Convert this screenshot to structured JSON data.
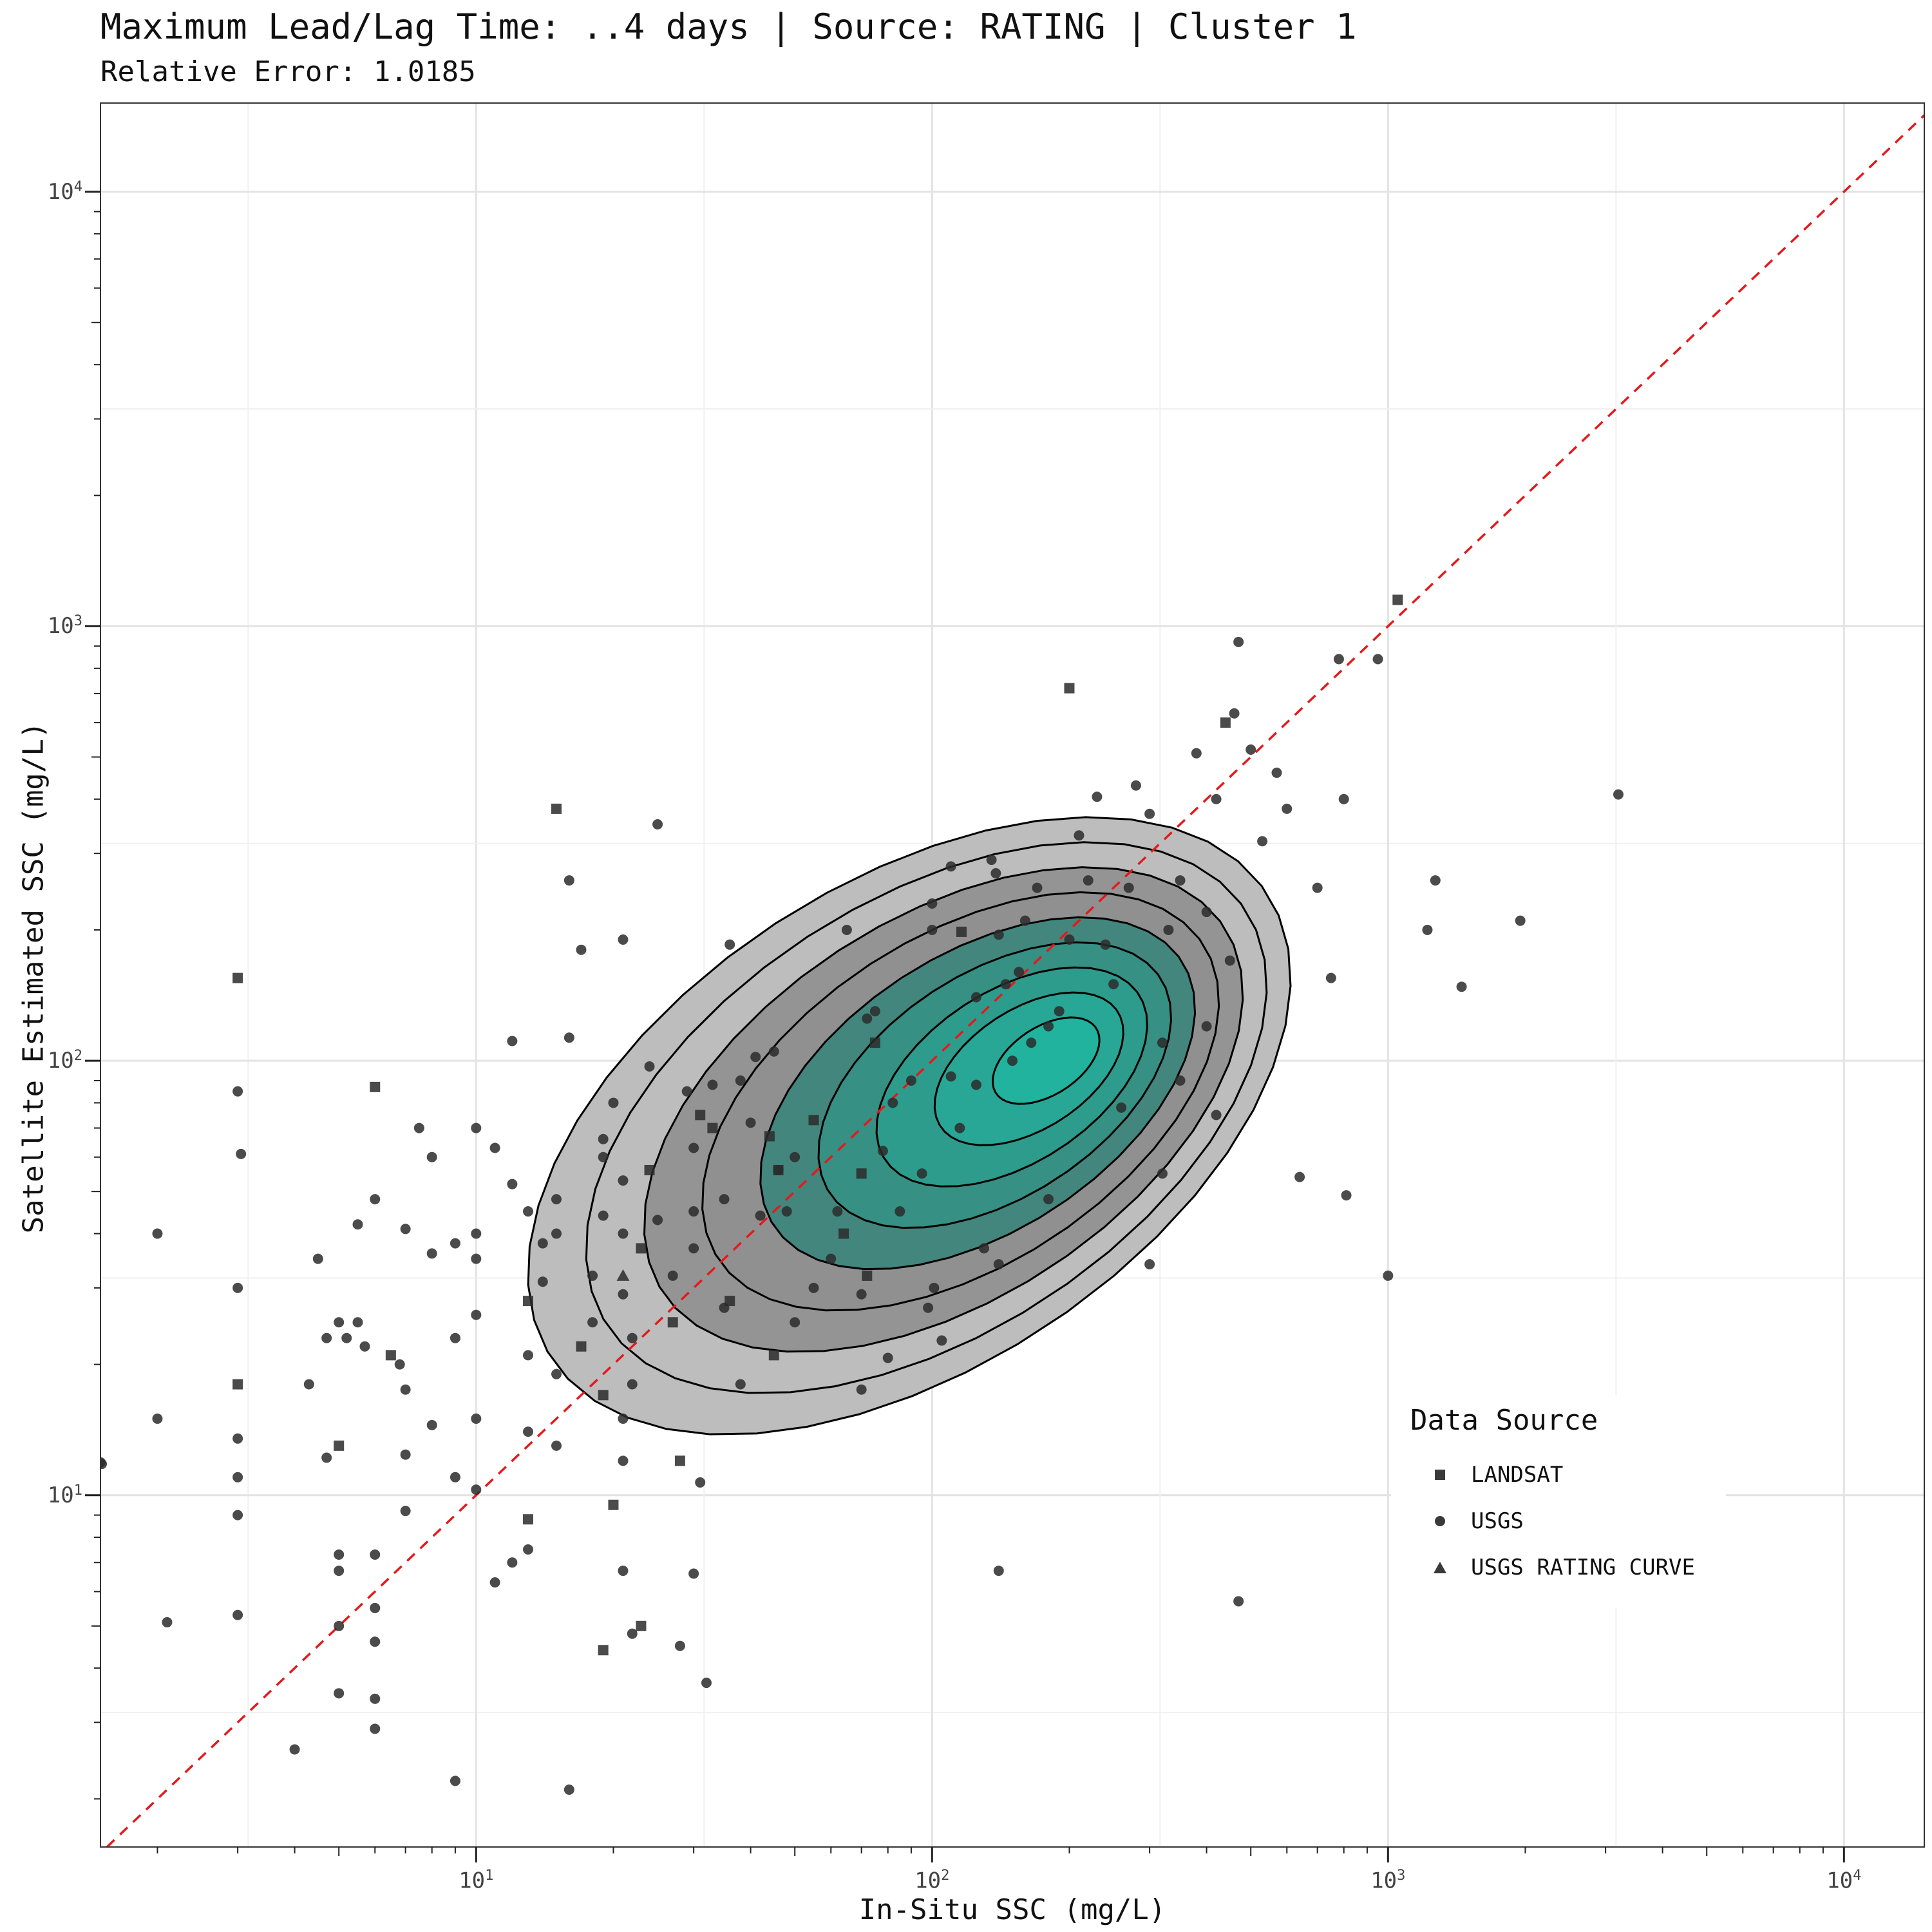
{
  "title": "Maximum Lead/Lag Time: ..4 days | Source: RATING | Cluster 1",
  "subtitle": "Relative Error: 1.0185",
  "chart_data": {
    "type": "scatter",
    "x_label": "In-Situ SSC (mg/L)",
    "y_label": "Satellite Estimated SSC (mg/L)",
    "x_scale": "log10",
    "y_scale": "log10",
    "x_range": [
      1.5,
      15000
    ],
    "y_range": [
      1.55,
      16000
    ],
    "x_ticks": [
      {
        "base": "10",
        "exp": "1",
        "value": 10
      },
      {
        "base": "10",
        "exp": "2",
        "value": 100
      },
      {
        "base": "10",
        "exp": "3",
        "value": 1000
      },
      {
        "base": "10",
        "exp": "4",
        "value": 10000
      }
    ],
    "y_ticks": [
      {
        "base": "10",
        "exp": "1",
        "value": 10
      },
      {
        "base": "10",
        "exp": "2",
        "value": 100
      },
      {
        "base": "10",
        "exp": "3",
        "value": 1000
      },
      {
        "base": "10",
        "exp": "4",
        "value": 10000
      }
    ],
    "grid": true,
    "reference_line": {
      "type": "1:1",
      "color": "#e31a1c",
      "style": "dashed"
    },
    "density_contours": {
      "levels": 9,
      "low_color": "#bdbdbd",
      "high_color": "#21b5a0"
    },
    "legend": {
      "title": "Data Source",
      "position": "bottom-right",
      "items": [
        {
          "label": "LANDSAT",
          "shape": "square"
        },
        {
          "label": "USGS",
          "shape": "circle"
        },
        {
          "label": "USGS RATING CURVE",
          "shape": "triangle"
        }
      ]
    },
    "series": [
      {
        "name": "LANDSAT",
        "shape": "square",
        "points": [
          [
            1050,
            1150
          ],
          [
            200,
            720
          ],
          [
            15,
            380
          ],
          [
            3,
            155
          ],
          [
            6,
            87
          ],
          [
            3,
            18
          ],
          [
            5,
            13
          ],
          [
            6.5,
            21
          ],
          [
            13,
            28
          ],
          [
            17,
            22
          ],
          [
            19,
            17
          ],
          [
            20,
            9.5
          ],
          [
            13,
            8.8
          ],
          [
            19,
            4.4
          ],
          [
            23,
            5
          ],
          [
            28,
            12
          ],
          [
            27,
            25
          ],
          [
            23,
            37
          ],
          [
            24,
            56
          ],
          [
            36,
            28
          ],
          [
            45,
            21
          ],
          [
            55,
            73
          ],
          [
            70,
            55
          ],
          [
            64,
            40
          ],
          [
            31,
            75
          ],
          [
            33,
            70
          ],
          [
            46,
            56
          ],
          [
            44,
            67
          ],
          [
            75,
            110
          ],
          [
            440,
            600
          ],
          [
            116,
            198
          ],
          [
            72,
            32
          ]
        ]
      },
      {
        "name": "USGS",
        "shape": "circle",
        "points": [
          [
            1.5,
            11.9
          ],
          [
            1.51,
            11.8
          ],
          [
            2,
            40
          ],
          [
            2,
            15
          ],
          [
            2.1,
            5.1
          ],
          [
            3,
            85
          ],
          [
            3.05,
            61
          ],
          [
            3,
            30
          ],
          [
            3,
            13.5
          ],
          [
            3,
            11
          ],
          [
            3,
            9
          ],
          [
            3,
            5.3
          ],
          [
            4,
            2.6
          ],
          [
            4.5,
            35
          ],
          [
            4.3,
            18
          ],
          [
            4.7,
            23
          ],
          [
            5,
            25
          ],
          [
            4.7,
            12.2
          ],
          [
            5,
            7.3
          ],
          [
            5,
            6.7
          ],
          [
            5,
            5
          ],
          [
            5,
            3.5
          ],
          [
            6,
            7.3
          ],
          [
            6,
            5.5
          ],
          [
            6,
            4.6
          ],
          [
            6,
            3.4
          ],
          [
            6,
            2.9
          ],
          [
            5.5,
            42
          ],
          [
            6,
            48
          ],
          [
            5.7,
            22
          ],
          [
            5.5,
            25
          ],
          [
            5.2,
            23
          ],
          [
            6.8,
            20
          ],
          [
            7,
            12.4
          ],
          [
            7,
            9.2
          ],
          [
            7,
            17.5
          ],
          [
            7.5,
            70
          ],
          [
            8,
            60
          ],
          [
            7,
            41
          ],
          [
            8,
            36
          ],
          [
            8,
            14.5
          ],
          [
            9,
            38
          ],
          [
            9,
            23
          ],
          [
            9,
            11
          ],
          [
            9,
            2.2
          ],
          [
            10,
            70
          ],
          [
            10,
            40
          ],
          [
            10,
            35
          ],
          [
            10,
            26
          ],
          [
            10,
            15
          ],
          [
            10,
            10.3
          ],
          [
            11,
            63
          ],
          [
            11,
            6.3
          ],
          [
            12,
            52
          ],
          [
            12,
            111
          ],
          [
            12,
            7
          ],
          [
            13,
            45
          ],
          [
            13,
            21
          ],
          [
            13,
            14
          ],
          [
            13,
            7.5
          ],
          [
            14,
            38
          ],
          [
            14,
            31
          ],
          [
            15,
            48
          ],
          [
            15,
            40
          ],
          [
            15,
            19
          ],
          [
            15,
            13
          ],
          [
            16,
            260
          ],
          [
            16,
            113
          ],
          [
            17,
            180
          ],
          [
            18,
            32
          ],
          [
            18,
            25
          ],
          [
            19,
            60
          ],
          [
            19,
            44
          ],
          [
            19,
            66
          ],
          [
            20,
            80
          ],
          [
            21,
            190
          ],
          [
            21,
            53
          ],
          [
            21,
            40
          ],
          [
            21,
            29
          ],
          [
            21,
            15
          ],
          [
            21,
            12
          ],
          [
            21,
            6.7
          ],
          [
            22,
            23
          ],
          [
            22,
            18
          ],
          [
            22,
            4.8
          ],
          [
            24,
            97
          ],
          [
            25,
            350
          ],
          [
            25,
            43
          ],
          [
            27,
            32
          ],
          [
            28,
            4.5
          ],
          [
            29,
            85
          ],
          [
            30,
            63
          ],
          [
            30,
            45
          ],
          [
            30,
            37
          ],
          [
            30,
            6.6
          ],
          [
            31,
            10.7
          ],
          [
            32,
            3.7
          ],
          [
            33,
            88
          ],
          [
            35,
            48
          ],
          [
            35,
            27
          ],
          [
            36,
            185
          ],
          [
            38,
            90
          ],
          [
            38,
            18
          ],
          [
            40,
            72
          ],
          [
            41,
            102
          ],
          [
            42,
            44
          ],
          [
            45,
            105
          ],
          [
            46,
            56
          ],
          [
            48,
            45
          ],
          [
            50,
            60
          ],
          [
            50,
            25
          ],
          [
            55,
            30
          ],
          [
            60,
            35
          ],
          [
            62,
            45
          ],
          [
            65,
            200
          ],
          [
            70,
            29
          ],
          [
            70,
            17.5
          ],
          [
            72,
            125
          ],
          [
            75,
            130
          ],
          [
            78,
            62
          ],
          [
            80,
            20.7
          ],
          [
            82,
            80
          ],
          [
            85,
            45
          ],
          [
            90,
            90
          ],
          [
            95,
            55
          ],
          [
            98,
            27
          ],
          [
            100,
            230
          ],
          [
            100,
            200
          ],
          [
            101,
            30
          ],
          [
            105,
            22.7
          ],
          [
            110,
            280
          ],
          [
            110,
            92
          ],
          [
            115,
            70
          ],
          [
            125,
            140
          ],
          [
            125,
            88
          ],
          [
            130,
            37
          ],
          [
            135,
            290
          ],
          [
            138,
            270
          ],
          [
            140,
            195
          ],
          [
            140,
            6.7
          ],
          [
            145,
            150
          ],
          [
            150,
            100
          ],
          [
            155,
            160
          ],
          [
            160,
            210
          ],
          [
            165,
            110
          ],
          [
            170,
            250
          ],
          [
            180,
            120
          ],
          [
            190,
            130
          ],
          [
            200,
            190
          ],
          [
            210,
            330
          ],
          [
            220,
            260
          ],
          [
            230,
            405
          ],
          [
            240,
            185
          ],
          [
            250,
            150
          ],
          [
            270,
            250
          ],
          [
            280,
            430
          ],
          [
            300,
            370
          ],
          [
            300,
            34
          ],
          [
            320,
            110
          ],
          [
            330,
            200
          ],
          [
            350,
            260
          ],
          [
            380,
            510
          ],
          [
            400,
            220
          ],
          [
            420,
            400
          ],
          [
            450,
            170
          ],
          [
            460,
            630
          ],
          [
            470,
            920
          ],
          [
            470,
            5.7
          ],
          [
            500,
            520
          ],
          [
            530,
            320
          ],
          [
            570,
            460
          ],
          [
            600,
            380
          ],
          [
            640,
            54
          ],
          [
            700,
            250
          ],
          [
            750,
            155
          ],
          [
            780,
            840
          ],
          [
            800,
            400
          ],
          [
            810,
            49
          ],
          [
            950,
            840
          ],
          [
            1000,
            32
          ],
          [
            1220,
            200
          ],
          [
            1270,
            260
          ],
          [
            1450,
            148
          ],
          [
            1950,
            210
          ],
          [
            3200,
            410
          ],
          [
            16,
            2.1
          ],
          [
            140,
            34
          ],
          [
            180,
            48
          ],
          [
            260,
            78
          ],
          [
            320,
            55
          ],
          [
            350,
            90
          ],
          [
            400,
            120
          ],
          [
            420,
            75
          ]
        ]
      },
      {
        "name": "USGS RATING CURVE",
        "shape": "triangle",
        "points": [
          [
            21,
            32
          ]
        ]
      }
    ]
  }
}
